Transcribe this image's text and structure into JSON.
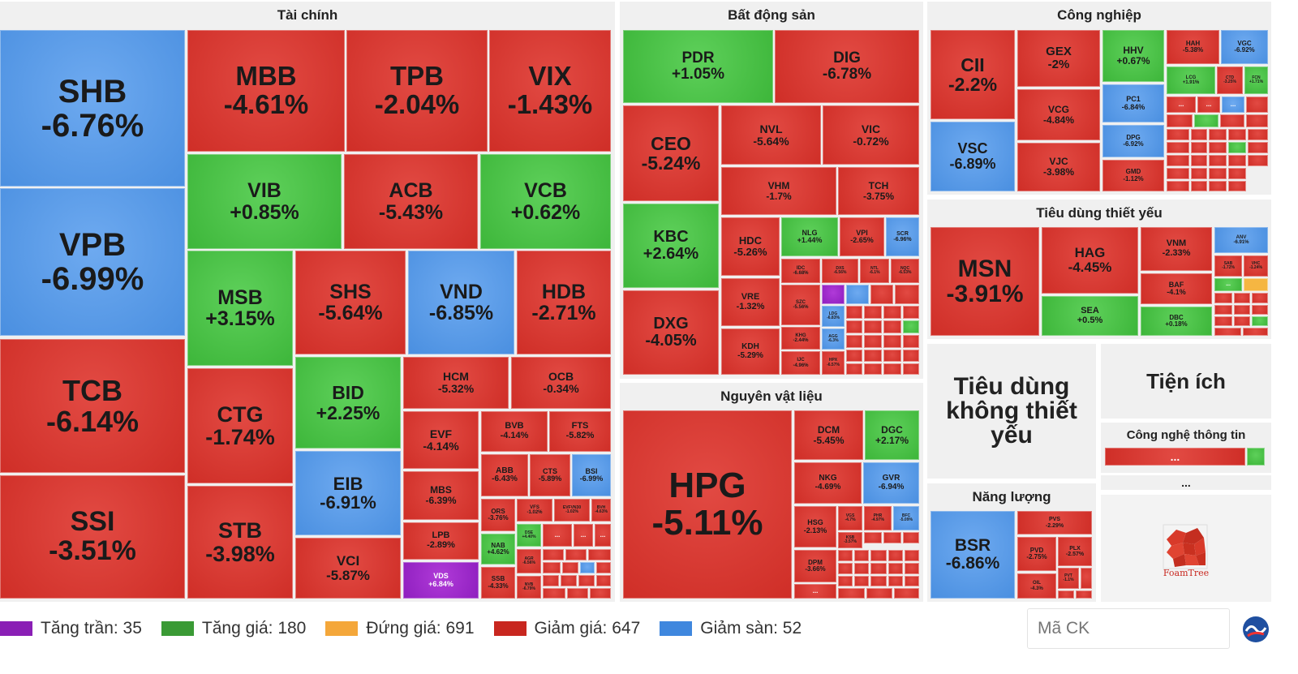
{
  "groups": {
    "finance": "Tài chính",
    "realestate": "Bất động sản",
    "industry": "Công nghiệp",
    "staples": "Tiêu dùng thiết yếu",
    "materials": "Nguyên vật liệu",
    "discretionary": "Tiêu dùng không thiết yếu",
    "utilities": "Tiện ích",
    "it": "Công nghệ thông tin",
    "energy": "Năng lượng"
  },
  "tiles": {
    "SHB": {
      "s": "SHB",
      "p": "-6.76%"
    },
    "VPB": {
      "s": "VPB",
      "p": "-6.99%"
    },
    "TCB": {
      "s": "TCB",
      "p": "-6.14%"
    },
    "SSI": {
      "s": "SSI",
      "p": "-3.51%"
    },
    "MBB": {
      "s": "MBB",
      "p": "-4.61%"
    },
    "TPB": {
      "s": "TPB",
      "p": "-2.04%"
    },
    "VIX": {
      "s": "VIX",
      "p": "-1.43%"
    },
    "VIB": {
      "s": "VIB",
      "p": "+0.85%"
    },
    "ACB": {
      "s": "ACB",
      "p": "-5.43%"
    },
    "VCB": {
      "s": "VCB",
      "p": "+0.62%"
    },
    "MSB": {
      "s": "MSB",
      "p": "+3.15%"
    },
    "SHS": {
      "s": "SHS",
      "p": "-5.64%"
    },
    "VND": {
      "s": "VND",
      "p": "-6.85%"
    },
    "HDB": {
      "s": "HDB",
      "p": "-2.71%"
    },
    "CTG": {
      "s": "CTG",
      "p": "-1.74%"
    },
    "STB": {
      "s": "STB",
      "p": "-3.98%"
    },
    "BID": {
      "s": "BID",
      "p": "+2.25%"
    },
    "EIB": {
      "s": "EIB",
      "p": "-6.91%"
    },
    "VCI": {
      "s": "VCI",
      "p": "-5.87%"
    },
    "HCM": {
      "s": "HCM",
      "p": "-5.32%"
    },
    "OCB": {
      "s": "OCB",
      "p": "-0.34%"
    },
    "EVF": {
      "s": "EVF",
      "p": "-4.14%"
    },
    "BVB": {
      "s": "BVB",
      "p": "-4.14%"
    },
    "FTS": {
      "s": "FTS",
      "p": "-5.82%"
    },
    "MBS": {
      "s": "MBS",
      "p": "-6.39%"
    },
    "ABB": {
      "s": "ABB",
      "p": "-6.43%"
    },
    "CTS": {
      "s": "CTS",
      "p": "-5.89%"
    },
    "BSI": {
      "s": "BSI",
      "p": "-6.99%"
    },
    "ORS": {
      "s": "ORS",
      "p": "-3.76%"
    },
    "VFS": {
      "s": "VFS",
      "p": "-1.02%"
    },
    "EVFVN30": {
      "s": "EVFVN30",
      "p": "-1.02%"
    },
    "BVH": {
      "s": "BVH",
      "p": "-4.63%"
    },
    "LPB": {
      "s": "LPB",
      "p": "-2.89%"
    },
    "NAB": {
      "s": "NAB",
      "p": "+4.62%"
    },
    "DSE": {
      "s": "DSE",
      "p": "+4.40%"
    },
    "AGR": {
      "s": "AGR",
      "p": "-6.56%"
    },
    "VDS": {
      "s": "VDS",
      "p": "+6.84%"
    },
    "SSB": {
      "s": "SSB",
      "p": "-4.33%"
    },
    "NVB": {
      "s": "NVB",
      "p": "-6.79%"
    },
    "PDR": {
      "s": "PDR",
      "p": "+1.05%"
    },
    "DIG": {
      "s": "DIG",
      "p": "-6.78%"
    },
    "CEO": {
      "s": "CEO",
      "p": "-5.24%"
    },
    "NVL": {
      "s": "NVL",
      "p": "-5.64%"
    },
    "VIC": {
      "s": "VIC",
      "p": "-0.72%"
    },
    "VHM": {
      "s": "VHM",
      "p": "-1.7%"
    },
    "TCH": {
      "s": "TCH",
      "p": "-3.75%"
    },
    "KBC": {
      "s": "KBC",
      "p": "+2.64%"
    },
    "HDC": {
      "s": "HDC",
      "p": "-5.26%"
    },
    "NLG": {
      "s": "NLG",
      "p": "+1.44%"
    },
    "VPI": {
      "s": "VPI",
      "p": "-2.65%"
    },
    "SCR": {
      "s": "SCR",
      "p": "-6.96%"
    },
    "DXG": {
      "s": "DXG",
      "p": "-4.05%"
    },
    "VRE": {
      "s": "VRE",
      "p": "-1.32%"
    },
    "KDH": {
      "s": "KDH",
      "p": "-5.29%"
    },
    "IDC": {
      "s": "IDC",
      "p": "-6.68%"
    },
    "DXS": {
      "s": "DXS",
      "p": "-6.56%"
    },
    "NTL": {
      "s": "NTL",
      "p": "-6.1%"
    },
    "NQC": {
      "s": "NQC",
      "p": "-6.53%"
    },
    "SZC": {
      "s": "SZC",
      "p": "-5.56%"
    },
    "LDG": {
      "s": "LDG",
      "p": "-6.83%"
    },
    "KHG": {
      "s": "KHG",
      "p": "-2.44%"
    },
    "AGG": {
      "s": "AGG",
      "p": "-6.3%"
    },
    "IJC": {
      "s": "IJC",
      "p": "-4.96%"
    },
    "HPX": {
      "s": "HPX",
      "p": "-6.57%"
    },
    "CII": {
      "s": "CII",
      "p": "-2.2%"
    },
    "GEX": {
      "s": "GEX",
      "p": "-2%"
    },
    "HHV": {
      "s": "HHV",
      "p": "+0.67%"
    },
    "HAH": {
      "s": "HAH",
      "p": "-5.38%"
    },
    "VGC": {
      "s": "VGC",
      "p": "-6.92%"
    },
    "LCG": {
      "s": "LCG",
      "p": "+1.91%"
    },
    "CTD": {
      "s": "CTD",
      "p": "-3.25%"
    },
    "FCN": {
      "s": "FCN",
      "p": "+1.71%"
    },
    "VCG": {
      "s": "VCG",
      "p": "-4.84%"
    },
    "PC1": {
      "s": "PC1",
      "p": "-6.84%"
    },
    "VSC": {
      "s": "VSC",
      "p": "-6.89%"
    },
    "VJC": {
      "s": "VJC",
      "p": "-3.98%"
    },
    "DPG": {
      "s": "DPG",
      "p": "-6.92%"
    },
    "GMD": {
      "s": "GMD",
      "p": "-1.12%"
    },
    "MSN": {
      "s": "MSN",
      "p": "-3.91%"
    },
    "HAG": {
      "s": "HAG",
      "p": "-4.45%"
    },
    "VNM": {
      "s": "VNM",
      "p": "-2.33%"
    },
    "ANV": {
      "s": "ANV",
      "p": "-6.91%"
    },
    "SAB": {
      "s": "SAB",
      "p": "-1.72%"
    },
    "VHC": {
      "s": "VHC",
      "p": "-1.24%"
    },
    "BAF": {
      "s": "BAF",
      "p": "-4.1%"
    },
    "SEA": {
      "s": "SEA",
      "p": "+0.5%"
    },
    "DBC": {
      "s": "DBC",
      "p": "+0.18%"
    },
    "HPG": {
      "s": "HPG",
      "p": "-5.11%"
    },
    "DCM": {
      "s": "DCM",
      "p": "-5.45%"
    },
    "DGC": {
      "s": "DGC",
      "p": "+2.17%"
    },
    "NKG": {
      "s": "NKG",
      "p": "-4.69%"
    },
    "GVR": {
      "s": "GVR",
      "p": "-6.94%"
    },
    "HSG": {
      "s": "HSG",
      "p": "-2.13%"
    },
    "VGS": {
      "s": "VGS",
      "p": "-4.7%"
    },
    "PHR": {
      "s": "PHR",
      "p": "-4.97%"
    },
    "BFC": {
      "s": "BFC",
      "p": "-5.09%"
    },
    "KSB": {
      "s": "KSB",
      "p": "-3.57%"
    },
    "DPM": {
      "s": "DPM",
      "p": "-3.66%"
    },
    "BSR": {
      "s": "BSR",
      "p": "-6.86%"
    },
    "PVS": {
      "s": "PVS",
      "p": "-2.29%"
    },
    "PVD": {
      "s": "PVD",
      "p": "-2.75%"
    },
    "PLX": {
      "s": "PLX",
      "p": "-2.57%"
    },
    "OIL": {
      "s": "OIL",
      "p": "-4.3%"
    },
    "PVT": {
      "s": "PVT",
      "p": "-1.1%"
    }
  },
  "ellipsis": "...",
  "legend": [
    {
      "label": "Tăng trần: 35",
      "color": "#8a1fb5"
    },
    {
      "label": "Tăng giá: 180",
      "color": "#3a9a35"
    },
    {
      "label": "Đứng giá: 691",
      "color": "#f4a73a"
    },
    {
      "label": "Giảm giá: 647",
      "color": "#c8271f"
    },
    {
      "label": "Giảm sàn: 52",
      "color": "#3f87de"
    }
  ],
  "search": {
    "placeholder": "Mã CK"
  },
  "foamtree": "FoamTree"
}
